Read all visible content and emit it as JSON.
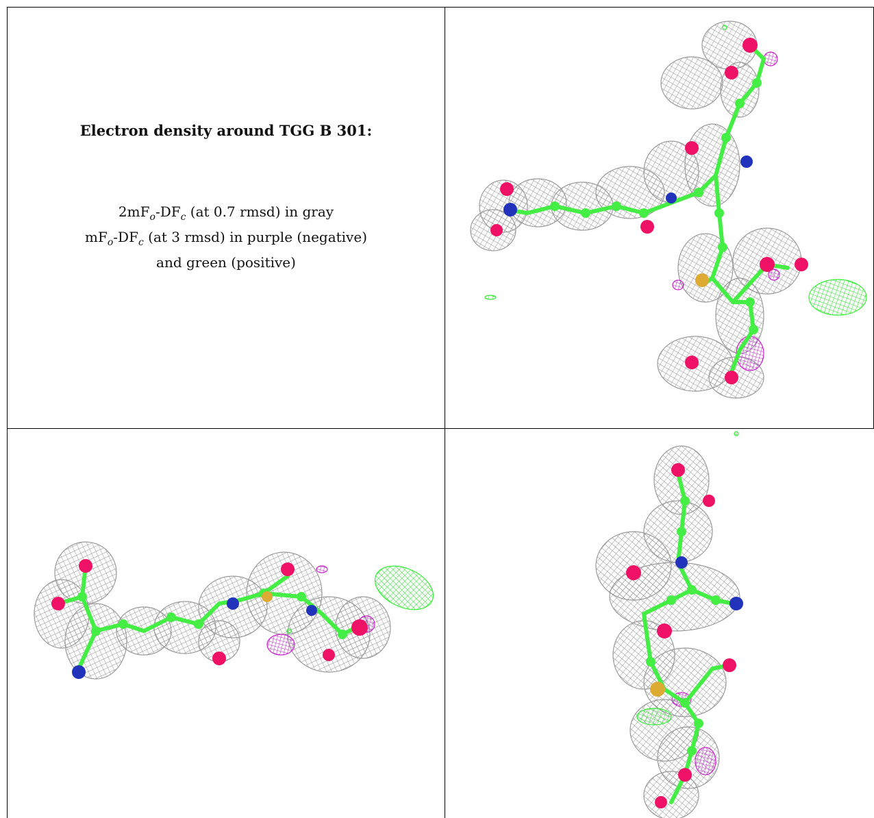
{
  "legend": {
    "title": "Electron density around TGG B 301:",
    "line1": {
      "a": "2mF",
      "s1": "o",
      "b": "-DF",
      "s2": "c",
      "c": " (at 0.7 rmsd) in gray"
    },
    "line2": {
      "a": "mF",
      "s1": "o",
      "b": "-DF",
      "s2": "c",
      "c": " (at 3 rmsd) in purple (negative)"
    },
    "line3": "and green (positive)"
  },
  "colors": {
    "mesh_2fofc": "#9a9a9a",
    "positive": "#33ee33",
    "negative": "#cc22cc",
    "carbon": "#44ee44",
    "oxygen": "#ee1166",
    "nitrogen": "#2233bb",
    "sulfur": "#ddaa33"
  },
  "panels": [
    {
      "name": "view-1"
    },
    {
      "name": "view-2"
    },
    {
      "name": "view-3"
    }
  ]
}
